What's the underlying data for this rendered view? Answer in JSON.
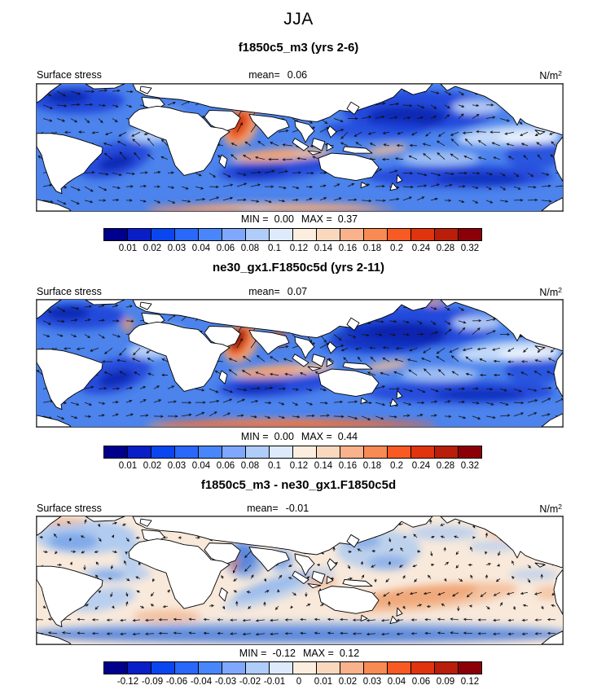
{
  "title": "JJA",
  "units": {
    "base": "N/m",
    "exp": "2"
  },
  "colorbar": {
    "colors": [
      "#00008C",
      "#0A1EC8",
      "#0A46F0",
      "#2A68FA",
      "#4A86FB",
      "#7FA8FC",
      "#B0CCF8",
      "#DCEAFB",
      "#FBEEDF",
      "#FAD8BE",
      "#F9B28C",
      "#F88A54",
      "#F75A22",
      "#E0340E",
      "#B91E0A",
      "#8B0008"
    ]
  },
  "panels": [
    {
      "title": "f1850c5_m3 (yrs 2-6)",
      "field_label": "Surface stress",
      "mean_label": "mean=",
      "mean_value": "0.06",
      "min_label": "MIN =",
      "min_value": "0.00",
      "max_label": "MAX =",
      "max_value": "0.37",
      "ticks": [
        "0.01",
        "0.02",
        "0.03",
        "0.04",
        "0.06",
        "0.08",
        "0.1",
        "0.12",
        "0.14",
        "0.16",
        "0.18",
        "0.2",
        "0.24",
        "0.28",
        "0.32"
      ]
    },
    {
      "title": "ne30_gx1.F1850c5d (yrs 2-11)",
      "field_label": "Surface stress",
      "mean_label": "mean=",
      "mean_value": "0.07",
      "min_label": "MIN =",
      "min_value": "0.00",
      "max_label": "MAX =",
      "max_value": "0.44",
      "ticks": [
        "0.01",
        "0.02",
        "0.03",
        "0.04",
        "0.06",
        "0.08",
        "0.1",
        "0.12",
        "0.14",
        "0.16",
        "0.18",
        "0.2",
        "0.24",
        "0.28",
        "0.32"
      ]
    },
    {
      "title": "f1850c5_m3 - ne30_gx1.F1850c5d",
      "field_label": "Surface stress",
      "mean_label": "mean=",
      "mean_value": "-0.01",
      "min_label": "MIN =",
      "min_value": "-0.12",
      "max_label": "MAX =",
      "max_value": "0.12",
      "ticks": [
        "-0.12",
        "-0.09",
        "-0.06",
        "-0.04",
        "-0.03",
        "-0.02",
        "-0.01",
        "0",
        "0.01",
        "0.02",
        "0.03",
        "0.04",
        "0.06",
        "0.09",
        "0.12"
      ]
    }
  ],
  "chart_data": [
    {
      "type": "heatmap",
      "title": "f1850c5_m3 (yrs 2-6)",
      "suptitle": "JJA",
      "variable": "Surface stress",
      "units": "N/m^2",
      "mean": 0.06,
      "min": 0.0,
      "max": 0.37,
      "levels": [
        0.01,
        0.02,
        0.03,
        0.04,
        0.06,
        0.08,
        0.1,
        0.12,
        0.14,
        0.16,
        0.18,
        0.2,
        0.24,
        0.28,
        0.32
      ],
      "palette": [
        "#00008C",
        "#0A1EC8",
        "#0A46F0",
        "#2A68FA",
        "#4A86FB",
        "#7FA8FC",
        "#B0CCF8",
        "#DCEAFB",
        "#FBEEDF",
        "#FAD8BE",
        "#F9B28C",
        "#F88A54",
        "#F75A22",
        "#E0340E",
        "#B91E0A",
        "#8B0008"
      ],
      "overlay": "surface stress vectors",
      "layout": "global ocean map, land masked white, colorbar below",
      "notable_features": [
        "strong maximum (red) Somali jet in Arabian Sea",
        "moderate maxima in southern Indian Ocean trades and Southern Ocean",
        "dark blue minima in subtropical gyres"
      ]
    },
    {
      "type": "heatmap",
      "title": "ne30_gx1.F1850c5d (yrs 2-11)",
      "suptitle": "JJA",
      "variable": "Surface stress",
      "units": "N/m^2",
      "mean": 0.07,
      "min": 0.0,
      "max": 0.44,
      "levels": [
        0.01,
        0.02,
        0.03,
        0.04,
        0.06,
        0.08,
        0.1,
        0.12,
        0.14,
        0.16,
        0.18,
        0.2,
        0.24,
        0.28,
        0.32
      ],
      "palette": [
        "#00008C",
        "#0A1EC8",
        "#0A46F0",
        "#2A68FA",
        "#4A86FB",
        "#7FA8FC",
        "#B0CCF8",
        "#DCEAFB",
        "#FBEEDF",
        "#FAD8BE",
        "#F9B28C",
        "#F88A54",
        "#F75A22",
        "#E0340E",
        "#B91E0A",
        "#8B0008"
      ],
      "overlay": "surface stress vectors",
      "layout": "global ocean map, land masked white, colorbar below",
      "notable_features": [
        "stronger Somali jet maximum than panel 1",
        "red band along Southern Ocean",
        "dark blue minima in subtropical gyres"
      ]
    },
    {
      "type": "heatmap",
      "title": "f1850c5_m3 - ne30_gx1.F1850c5d",
      "suptitle": "JJA",
      "variable": "Surface stress difference",
      "units": "N/m^2",
      "mean": -0.01,
      "min": -0.12,
      "max": 0.12,
      "levels": [
        -0.12,
        -0.09,
        -0.06,
        -0.04,
        -0.03,
        -0.02,
        -0.01,
        0,
        0.01,
        0.02,
        0.03,
        0.04,
        0.06,
        0.09,
        0.12
      ],
      "palette": [
        "#00008C",
        "#0A1EC8",
        "#0A46F0",
        "#2A68FA",
        "#4A86FB",
        "#7FA8FC",
        "#B0CCF8",
        "#DCEAFB",
        "#FBEEDF",
        "#FAD8BE",
        "#F9B28C",
        "#F88A54",
        "#F75A22",
        "#E0340E",
        "#B91E0A",
        "#8B0008"
      ],
      "overlay": "difference vectors (small)",
      "layout": "global ocean map, land masked white, colorbar below",
      "notable_features": [
        "mostly weak positive (light peach) differences",
        "negative (blue) band along Southern Ocean and Arabian Sea / Bay of Bengal",
        "positive (orange) streak in subtropical South Pacific"
      ]
    }
  ]
}
